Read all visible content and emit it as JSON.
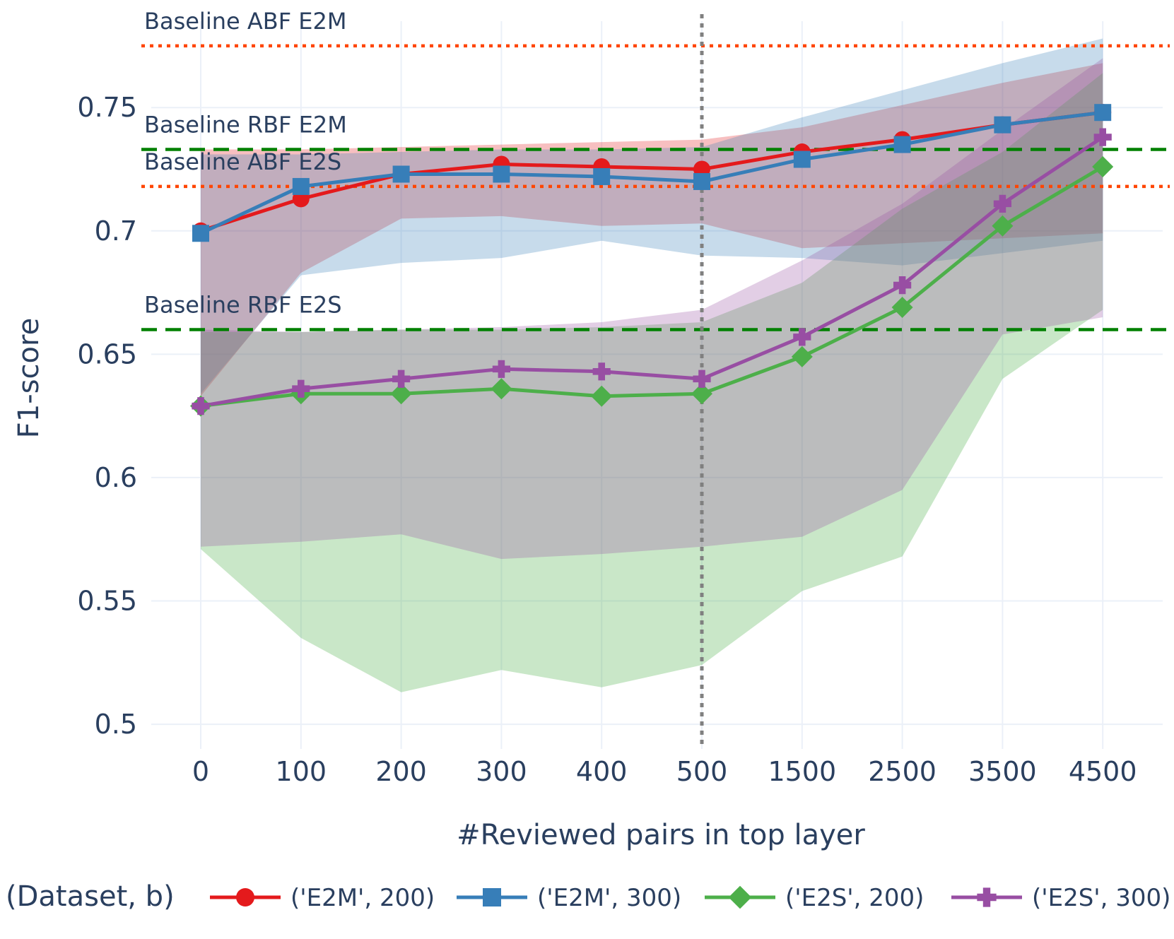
{
  "chart_data": {
    "type": "line",
    "xlabel": "#Reviewed pairs in top layer",
    "ylabel": "F1-score",
    "categories": [
      "0",
      "100",
      "200",
      "300",
      "400",
      "500",
      "1500",
      "2500",
      "3500",
      "4500"
    ],
    "ylim": [
      0.49,
      0.785
    ],
    "yticks": [
      0.5,
      0.55,
      0.6,
      0.65,
      0.7,
      0.75
    ],
    "ytick_labels": [
      "0.5",
      "0.55",
      "0.6",
      "0.65",
      "0.7",
      "0.75"
    ],
    "grid": true,
    "legend": {
      "title": "(Dataset, b)",
      "position": "bottom",
      "entries": [
        "('E2M', 200)",
        "('E2M', 300)",
        "('E2S', 200)",
        "('E2S', 300)"
      ]
    },
    "series": [
      {
        "name": "('E2M', 200)",
        "color": "#e41a1c",
        "band_color": "rgba(228,26,28,0.28)",
        "marker": "circle",
        "values": [
          0.7,
          0.713,
          0.723,
          0.727,
          0.726,
          0.725,
          0.732,
          0.737,
          0.743,
          0.748
        ],
        "upper": [
          0.733,
          0.733,
          0.734,
          0.735,
          0.736,
          0.737,
          0.742,
          0.751,
          0.76,
          0.768
        ],
        "lower": [
          0.633,
          0.683,
          0.705,
          0.706,
          0.702,
          0.703,
          0.693,
          0.695,
          0.697,
          0.699
        ]
      },
      {
        "name": "('E2M', 300)",
        "color": "#377eb8",
        "band_color": "rgba(55,126,184,0.28)",
        "marker": "square",
        "values": [
          0.699,
          0.718,
          0.723,
          0.723,
          0.722,
          0.72,
          0.729,
          0.735,
          0.743,
          0.748
        ],
        "upper": [
          0.731,
          0.731,
          0.732,
          0.733,
          0.733,
          0.734,
          0.746,
          0.757,
          0.768,
          0.778
        ],
        "lower": [
          0.634,
          0.682,
          0.687,
          0.689,
          0.696,
          0.69,
          0.689,
          0.686,
          0.691,
          0.696
        ]
      },
      {
        "name": "('E2S', 200)",
        "color": "#4daf4a",
        "band_color": "rgba(77,175,74,0.30)",
        "marker": "diamond",
        "values": [
          0.629,
          0.634,
          0.634,
          0.636,
          0.633,
          0.634,
          0.649,
          0.669,
          0.702,
          0.726
        ],
        "upper": [
          0.659,
          0.659,
          0.66,
          0.66,
          0.661,
          0.663,
          0.679,
          0.709,
          0.732,
          0.764
        ],
        "lower": [
          0.571,
          0.535,
          0.513,
          0.522,
          0.515,
          0.524,
          0.554,
          0.568,
          0.64,
          0.668
        ]
      },
      {
        "name": "('E2S', 300)",
        "color": "#984ea3",
        "band_color": "rgba(152,78,163,0.28)",
        "marker": "cross",
        "values": [
          0.629,
          0.636,
          0.64,
          0.644,
          0.643,
          0.64,
          0.657,
          0.678,
          0.711,
          0.738
        ],
        "upper": [
          0.66,
          0.659,
          0.66,
          0.661,
          0.663,
          0.668,
          0.688,
          0.711,
          0.741,
          0.77
        ],
        "lower": [
          0.572,
          0.574,
          0.577,
          0.567,
          0.569,
          0.572,
          0.576,
          0.595,
          0.658,
          0.665
        ]
      }
    ],
    "baselines": [
      {
        "label": "Baseline ABF E2M",
        "y": 0.775,
        "color": "#ff4500",
        "style": "dotted"
      },
      {
        "label": "Baseline RBF E2M",
        "y": 0.733,
        "color": "#008000",
        "style": "dashed"
      },
      {
        "label": "Baseline ABF E2S",
        "y": 0.718,
        "color": "#ff4500",
        "style": "dotted"
      },
      {
        "label": "Baseline RBF E2S",
        "y": 0.66,
        "color": "#008000",
        "style": "dashed"
      }
    ],
    "vertical_marker": {
      "category": "500",
      "color": "#808080",
      "style": "dotted"
    }
  }
}
